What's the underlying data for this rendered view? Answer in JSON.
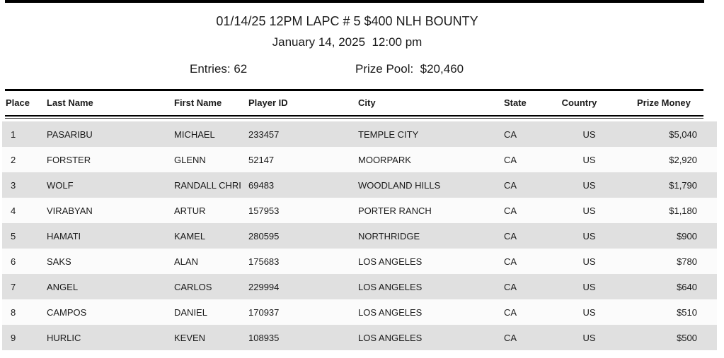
{
  "page": {
    "title": "01/14/25 12PM LAPC # 5 $400 NLH BOUNTY",
    "date_time": "January 14, 2025  12:00 pm",
    "entries": "Entries: 62",
    "prize_pool": "Prize Pool:  $20,460"
  },
  "table": {
    "columns": [
      "Place",
      "Last Name",
      "First Name",
      "Player ID",
      "City",
      "State",
      "Country",
      "Prize Money"
    ],
    "rows": [
      {
        "place": "1",
        "last_name": "PASARIBU",
        "first_name": "MICHAEL",
        "player_id": "233457",
        "city": "TEMPLE CITY",
        "state": "CA",
        "country": "US",
        "prize_money": "$5,040"
      },
      {
        "place": "2",
        "last_name": "FORSTER",
        "first_name": "GLENN",
        "player_id": "52147",
        "city": "MOORPARK",
        "state": "CA",
        "country": "US",
        "prize_money": "$2,920"
      },
      {
        "place": "3",
        "last_name": "WOLF",
        "first_name": "RANDALL CHRI",
        "player_id": "69483",
        "city": "WOODLAND HILLS",
        "state": "CA",
        "country": "US",
        "prize_money": "$1,790"
      },
      {
        "place": "4",
        "last_name": "VIRABYAN",
        "first_name": "ARTUR",
        "player_id": "157953",
        "city": "PORTER RANCH",
        "state": "CA",
        "country": "US",
        "prize_money": "$1,180"
      },
      {
        "place": "5",
        "last_name": "HAMATI",
        "first_name": "KAMEL",
        "player_id": "280595",
        "city": "NORTHRIDGE",
        "state": "CA",
        "country": "US",
        "prize_money": "$900"
      },
      {
        "place": "6",
        "last_name": "SAKS",
        "first_name": "ALAN",
        "player_id": "175683",
        "city": "LOS ANGELES",
        "state": "CA",
        "country": "US",
        "prize_money": "$780"
      },
      {
        "place": "7",
        "last_name": "ANGEL",
        "first_name": "CARLOS",
        "player_id": "229994",
        "city": "LOS ANGELES",
        "state": "CA",
        "country": "US",
        "prize_money": "$640"
      },
      {
        "place": "8",
        "last_name": "CAMPOS",
        "first_name": "DANIEL",
        "player_id": "170937",
        "city": "LOS ANGELES",
        "state": "CA",
        "country": "US",
        "prize_money": "$510"
      },
      {
        "place": "9",
        "last_name": "HURLIC",
        "first_name": "KEVEN",
        "player_id": "108935",
        "city": "LOS ANGELES",
        "state": "CA",
        "country": "US",
        "prize_money": "$500"
      }
    ]
  },
  "colors": {
    "rule_black": "#000000",
    "stripe_gray": "#e0e0e0",
    "stripe_light": "#fbfbfb",
    "text": "#1a1a1a"
  }
}
